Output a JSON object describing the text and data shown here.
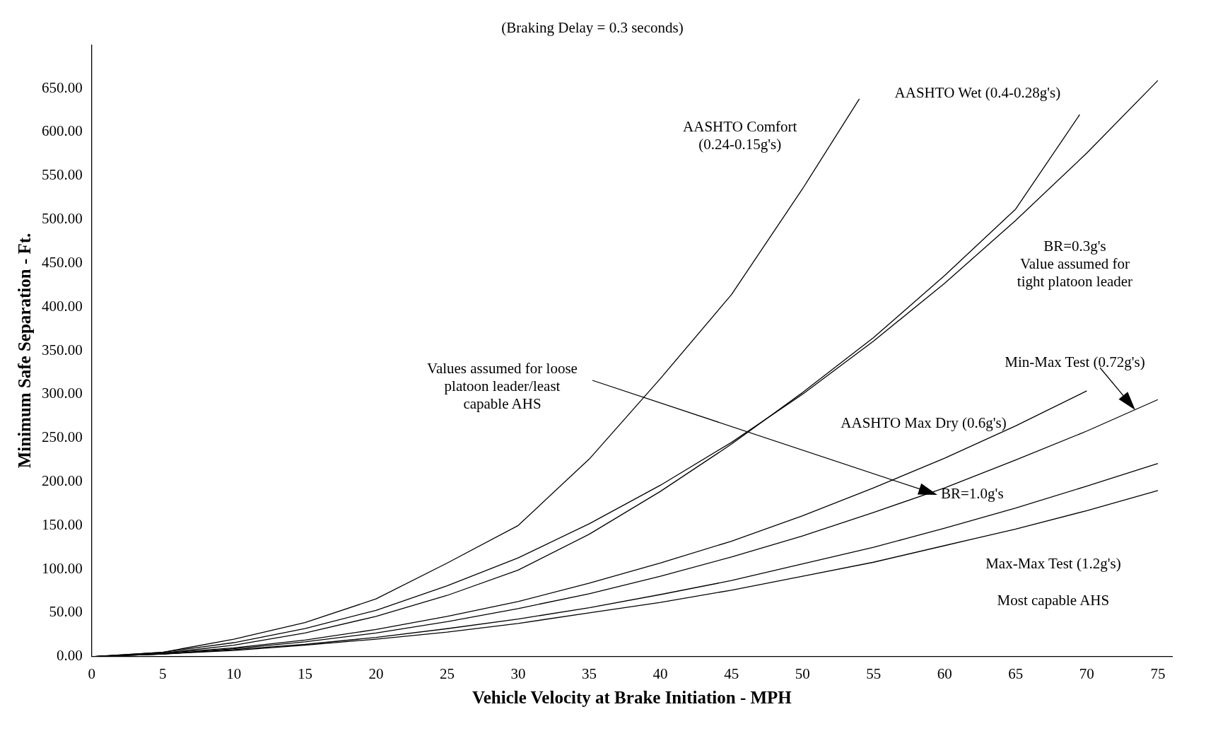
{
  "chart_data": {
    "type": "line",
    "title": "(Braking Delay = 0.3 seconds)",
    "xlabel": "Vehicle Velocity at Brake Initiation - MPH",
    "ylabel": "Minimum Safe Separation - Ft.",
    "xlim": [
      0,
      76
    ],
    "xticks": [
      0,
      5,
      10,
      15,
      20,
      25,
      30,
      35,
      40,
      45,
      50,
      55,
      60,
      65,
      70,
      75
    ],
    "ylim": [
      0,
      700
    ],
    "yticks": [
      {
        "value": 0,
        "label": "0.00"
      },
      {
        "value": 50,
        "label": "50.00"
      },
      {
        "value": 100,
        "label": "100.00"
      },
      {
        "value": 150,
        "label": "150.00"
      },
      {
        "value": 200,
        "label": "200.00"
      },
      {
        "value": 250,
        "label": "250.00"
      },
      {
        "value": 300,
        "label": "300.00"
      },
      {
        "value": 350,
        "label": "350.00"
      },
      {
        "value": 400,
        "label": "400.00"
      },
      {
        "value": 450,
        "label": "450.00"
      },
      {
        "value": 500,
        "label": "500.00"
      },
      {
        "value": 550,
        "label": "550.00"
      },
      {
        "value": 600,
        "label": "600.00"
      },
      {
        "value": 650,
        "label": "650.00"
      }
    ],
    "grid": false,
    "legend": false,
    "marker": "none",
    "line_style": "solid",
    "series": [
      {
        "color": "#000000",
        "x": [
          0,
          5,
          10,
          15,
          20,
          25,
          30,
          35,
          40,
          45,
          50,
          54
        ],
        "values": [
          0,
          5,
          20,
          39,
          66,
          107,
          150,
          226,
          318,
          414,
          535,
          638
        ]
      },
      {
        "color": "#000000",
        "x": [
          0,
          5,
          10,
          15,
          20,
          25,
          30,
          35,
          40,
          45,
          50,
          55,
          60,
          65,
          69.5
        ],
        "values": [
          0,
          4,
          13,
          27,
          46,
          70,
          99,
          140,
          189,
          243,
          302,
          365,
          436,
          512,
          620
        ]
      },
      {
        "color": "#000000",
        "x": [
          0,
          5,
          10,
          15,
          20,
          25,
          30,
          35,
          40,
          45,
          50,
          55,
          60,
          65,
          70,
          75
        ],
        "values": [
          0,
          5,
          16,
          32,
          53,
          81,
          113,
          152,
          196,
          245,
          300,
          361,
          427,
          499,
          576,
          659
        ]
      },
      {
        "color": "#000000",
        "x": [
          0,
          5,
          10,
          15,
          20,
          25,
          30,
          35,
          40,
          45,
          50,
          55,
          60,
          65,
          70
        ],
        "values": [
          0,
          4,
          10,
          19,
          31,
          46,
          63,
          84,
          107,
          132,
          161,
          193,
          227,
          264,
          304
        ]
      },
      {
        "color": "#000000",
        "x": [
          0,
          5,
          10,
          15,
          20,
          25,
          30,
          35,
          40,
          45,
          50,
          55,
          60,
          65,
          70,
          75
        ],
        "values": [
          0,
          3,
          9,
          17,
          27,
          40,
          55,
          72,
          92,
          114,
          138,
          165,
          193,
          225,
          258,
          294
        ]
      },
      {
        "color": "#000000",
        "x": [
          0,
          5,
          10,
          15,
          20,
          25,
          30,
          35,
          40,
          45,
          50,
          55,
          60,
          65,
          70,
          75
        ],
        "values": [
          0,
          3,
          8,
          14,
          22,
          32,
          43,
          56,
          71,
          87,
          106,
          125,
          147,
          170,
          195,
          221
        ]
      },
      {
        "color": "#000000",
        "x": [
          0,
          5,
          10,
          15,
          20,
          25,
          30,
          35,
          40,
          45,
          50,
          55,
          60,
          65,
          70,
          75
        ],
        "values": [
          0,
          3,
          7,
          13,
          20,
          28,
          38,
          50,
          62,
          76,
          92,
          108,
          127,
          146,
          167,
          190
        ]
      }
    ],
    "annotations": [
      "AASHTO Comfort\n(0.24-0.15g's)",
      "AASHTO Wet (0.4-0.28g's)",
      "BR=0.3g's\nValue assumed for\ntight platoon leader",
      "Min-Max Test (0.72g's)",
      "AASHTO Max Dry (0.6g's)",
      "Values assumed for loose\nplatoon leader/least\ncapable AHS",
      "BR=1.0g's",
      "Max-Max Test (1.2g's)",
      "Most capable AHS"
    ]
  }
}
